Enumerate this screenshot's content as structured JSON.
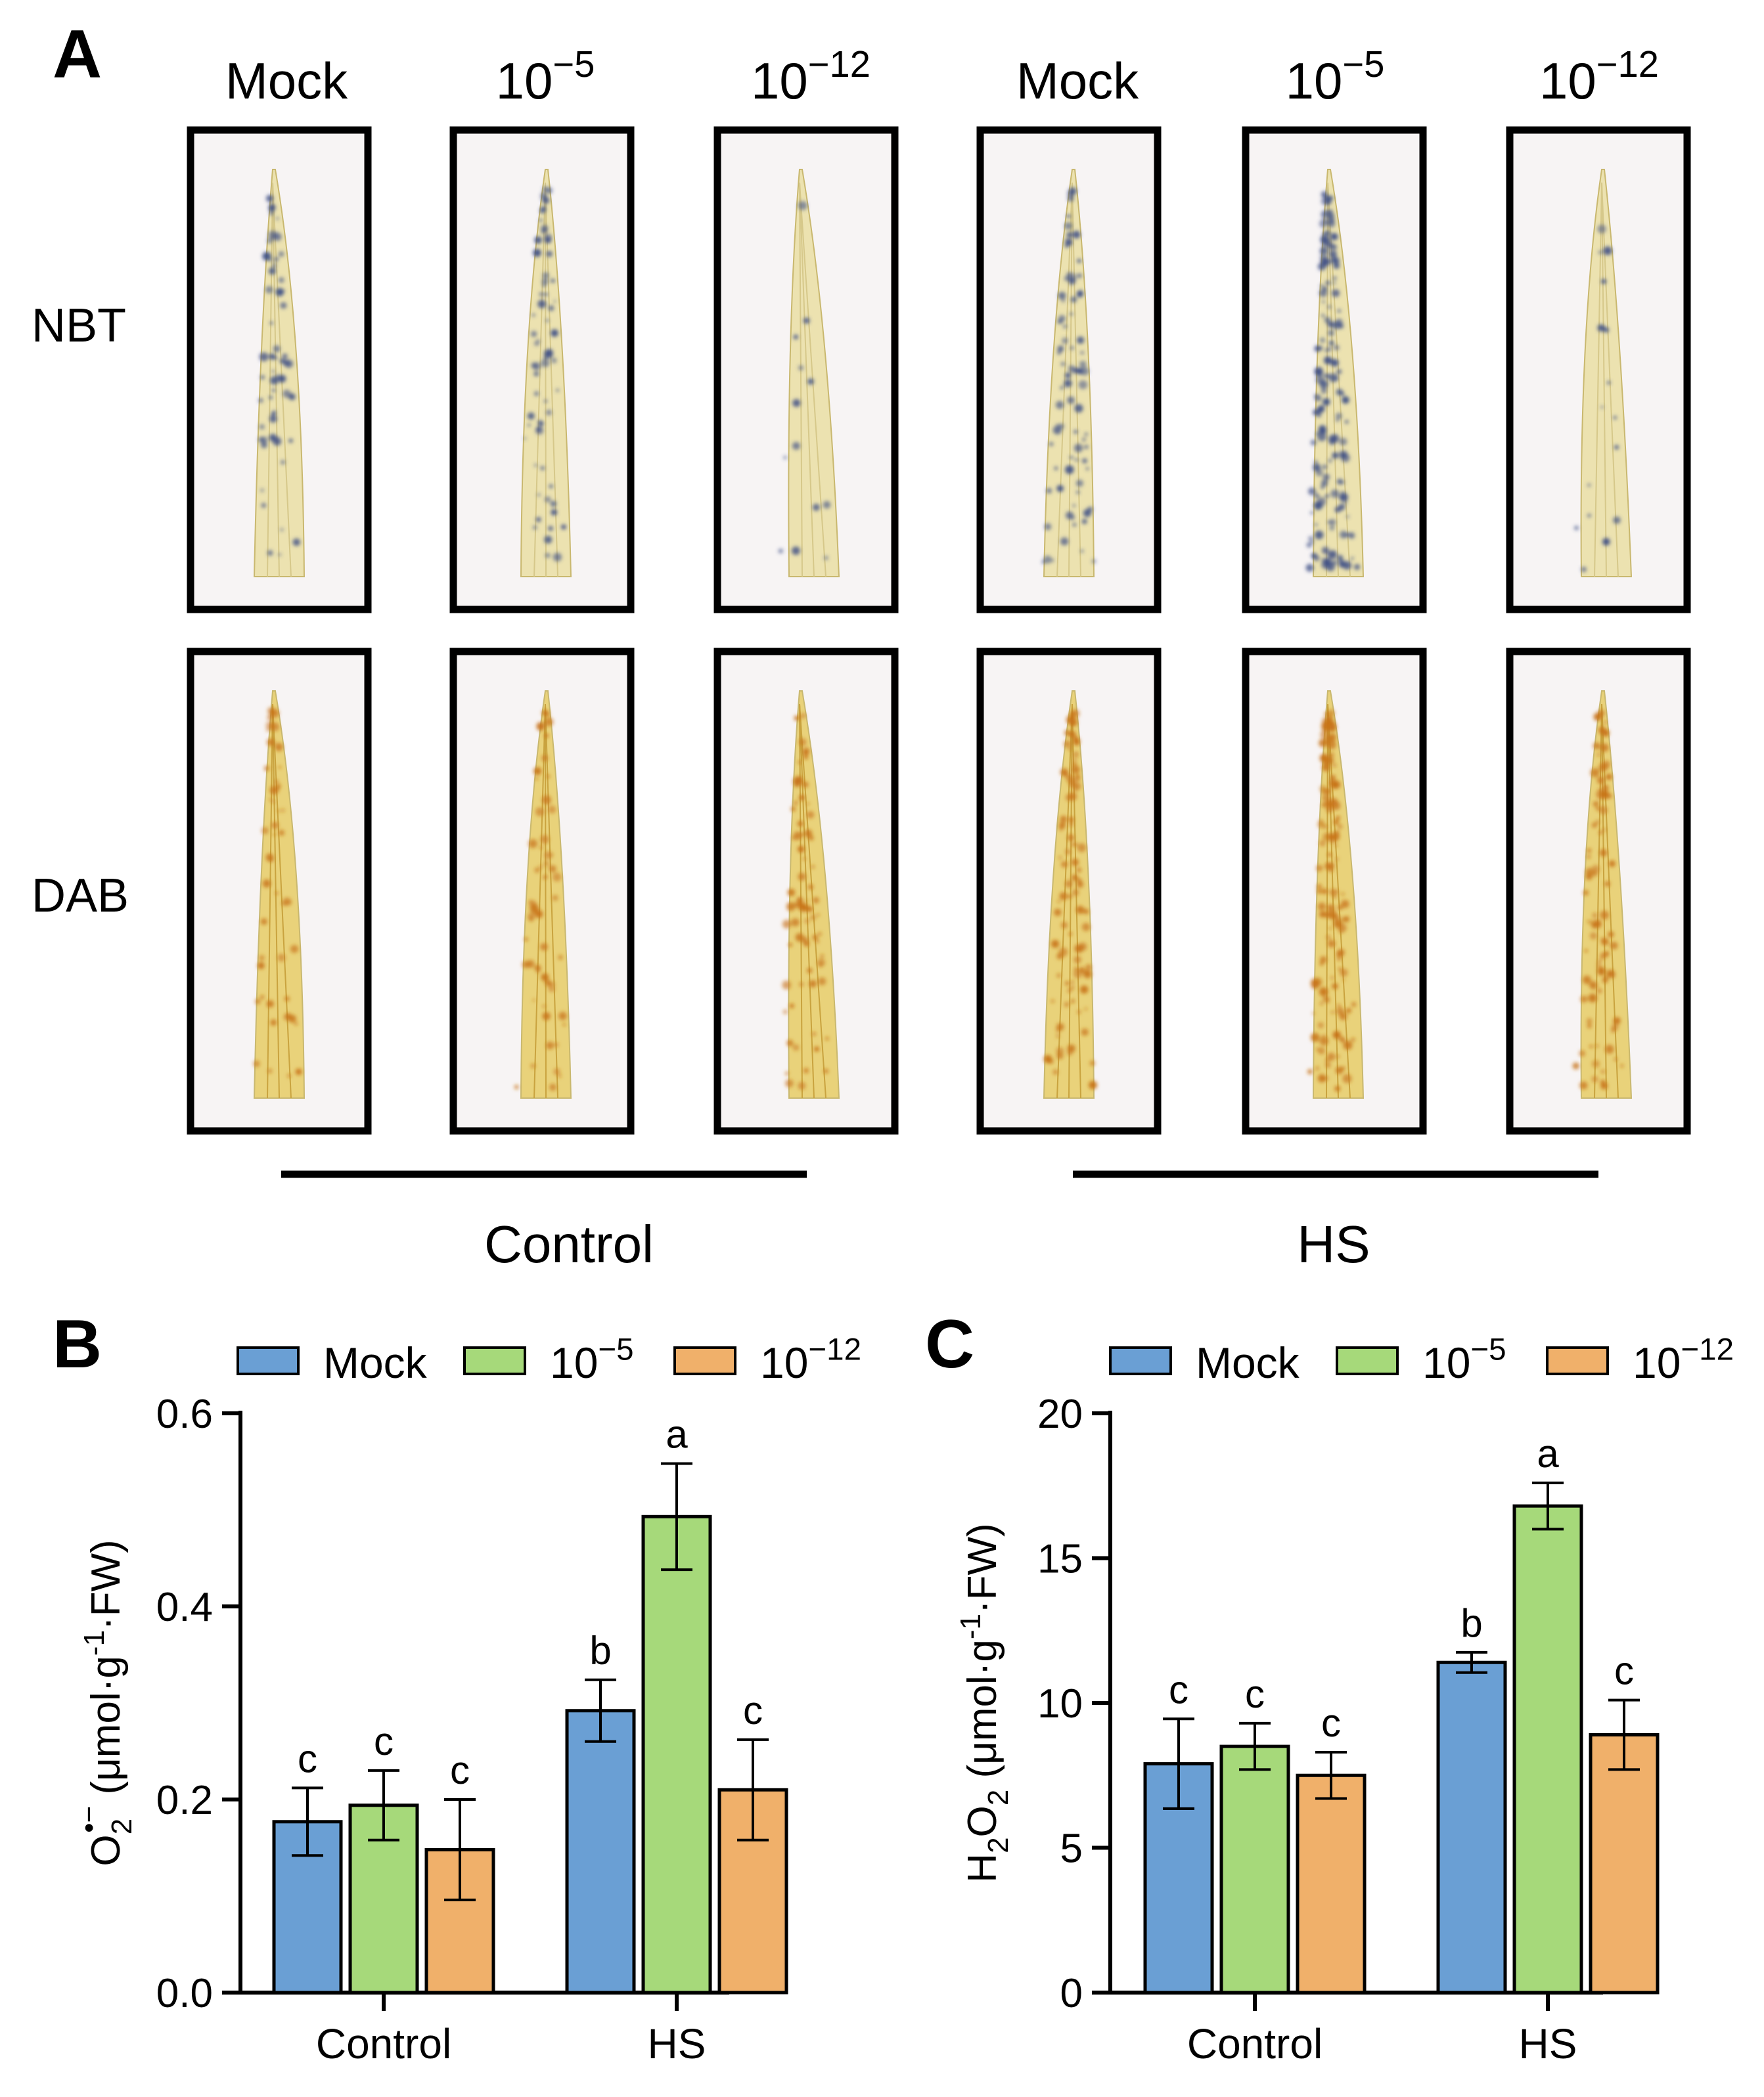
{
  "figure": {
    "panel_labels": [
      "A",
      "B",
      "C"
    ],
    "panel_a": {
      "columns": [
        {
          "base": "Mock",
          "exp": ""
        },
        {
          "base": "10",
          "exp": "−5"
        },
        {
          "base": "10",
          "exp": "−12"
        },
        {
          "base": "Mock",
          "exp": ""
        },
        {
          "base": "10",
          "exp": "−5"
        },
        {
          "base": "10",
          "exp": "−12"
        }
      ],
      "rows": [
        "NBT",
        "DAB"
      ],
      "groups": [
        "Control",
        "HS"
      ]
    }
  },
  "colors": {
    "mock": "#6a9fd4",
    "low": "#a6d97a",
    "high": "#f0b06a",
    "paper": "#f7f4f4",
    "leaf": "#ece2b0",
    "nbt_stain": "#3e4f86",
    "dab_stain": "#c8741a"
  },
  "legend": [
    {
      "base": "Mock",
      "exp": ""
    },
    {
      "base": "10",
      "exp": "−5"
    },
    {
      "base": "10",
      "exp": "−12"
    }
  ],
  "chart_data": [
    {
      "type": "bar",
      "panel": "B",
      "categories": [
        "Control",
        "HS"
      ],
      "series": [
        {
          "name": "Mock",
          "values": [
            0.177,
            0.292
          ],
          "errors": [
            0.035,
            0.032
          ],
          "letters": [
            "c",
            "b"
          ]
        },
        {
          "name": "10−5",
          "values": [
            0.194,
            0.493
          ],
          "errors": [
            0.036,
            0.055
          ],
          "letters": [
            "c",
            "a"
          ]
        },
        {
          "name": "10−12",
          "values": [
            0.148,
            0.21
          ],
          "errors": [
            0.052,
            0.052
          ],
          "letters": [
            "c",
            "c"
          ]
        }
      ],
      "ylim": [
        0,
        0.6
      ],
      "yticks": [
        "0.0",
        "0.2",
        "0.4",
        "0.6"
      ],
      "ylabel": {
        "base": "O",
        "sub": "2",
        "sup": "•−",
        "rest": " (μmol·g",
        "exp": "-1",
        "end": "·FW)"
      },
      "xlabel": ""
    },
    {
      "type": "bar",
      "panel": "C",
      "categories": [
        "Control",
        "HS"
      ],
      "series": [
        {
          "name": "Mock",
          "values": [
            7.9,
            11.4
          ],
          "errors": [
            1.55,
            0.35
          ],
          "letters": [
            "c",
            "b"
          ]
        },
        {
          "name": "10−5",
          "values": [
            8.5,
            16.8
          ],
          "errors": [
            0.8,
            0.8
          ],
          "letters": [
            "c",
            "a"
          ]
        },
        {
          "name": "10−12",
          "values": [
            7.5,
            8.9
          ],
          "errors": [
            0.8,
            1.2
          ],
          "letters": [
            "c",
            "c"
          ]
        }
      ],
      "ylim": [
        0,
        20
      ],
      "yticks": [
        "0",
        "5",
        "10",
        "15",
        "20"
      ],
      "ylabel": {
        "pre": "H",
        "sub1": "2",
        "mid": "O",
        "sub2": "2",
        "rest": " (μmol·g",
        "exp": "-1",
        "end": "·FW)"
      },
      "xlabel": ""
    }
  ]
}
